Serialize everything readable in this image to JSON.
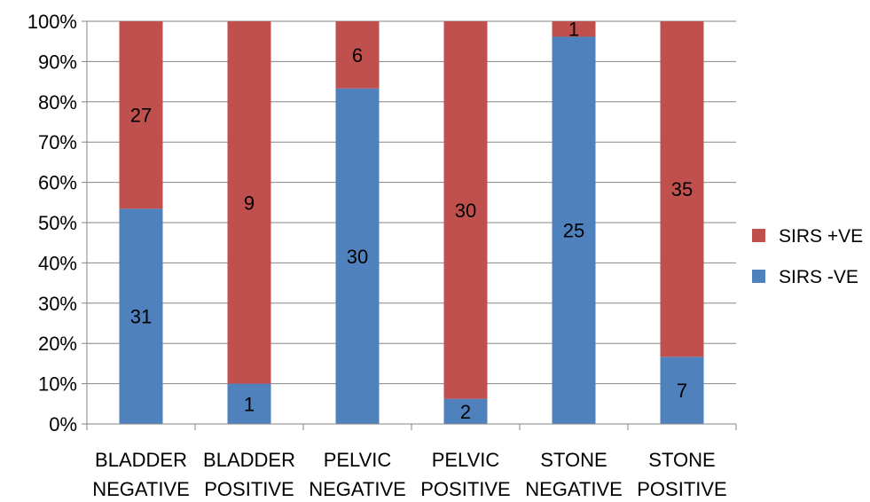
{
  "chart_data": {
    "type": "bar",
    "stacked": "percent",
    "categories": [
      [
        "BLADDER",
        "NEGATIVE"
      ],
      [
        "BLADDER",
        "POSITIVE"
      ],
      [
        "PELVIC",
        "NEGATIVE"
      ],
      [
        "PELVIC",
        "POSITIVE"
      ],
      [
        "STONE",
        "NEGATIVE"
      ],
      [
        "STONE",
        "POSITIVE"
      ]
    ],
    "series": [
      {
        "name": "SIRS -VE",
        "color": "#4F81BD",
        "values": [
          31,
          1,
          30,
          2,
          25,
          7
        ]
      },
      {
        "name": "SIRS +VE",
        "color": "#C0504D",
        "values": [
          27,
          9,
          6,
          30,
          1,
          35
        ]
      }
    ],
    "ylim": [
      0,
      100
    ],
    "yticks": [
      "0%",
      "10%",
      "20%",
      "30%",
      "40%",
      "50%",
      "60%",
      "70%",
      "80%",
      "90%",
      "100%"
    ],
    "grid": true,
    "legend_position": "right",
    "legend_order": [
      "SIRS +VE",
      "SIRS -VE"
    ]
  }
}
